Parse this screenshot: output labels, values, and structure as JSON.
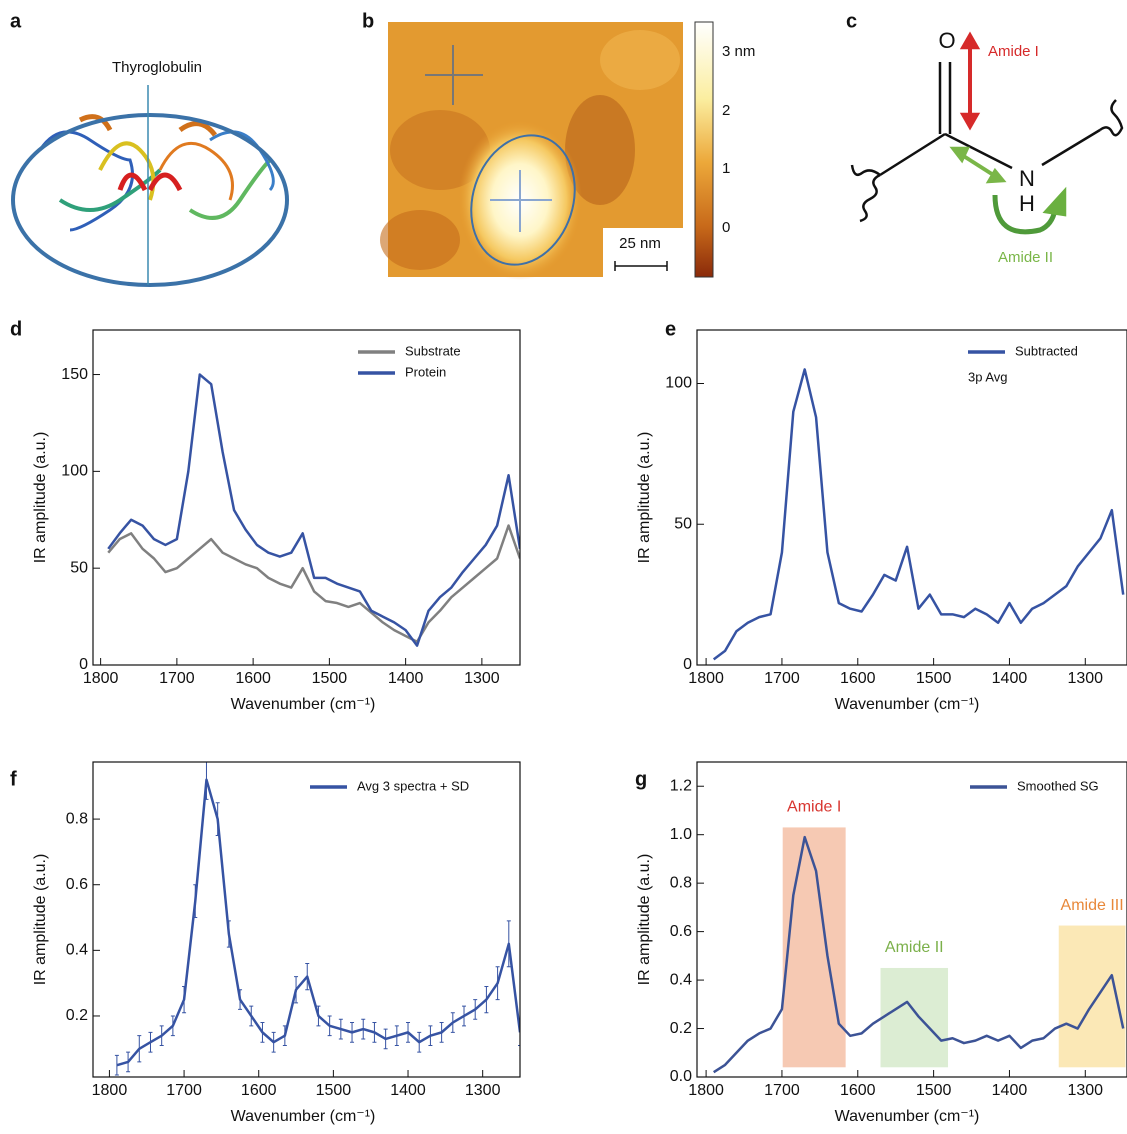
{
  "panel_labels": [
    "a",
    "b",
    "c"
  ],
  "figure_a": {
    "title": "Thyroglobulin"
  },
  "figure_b": {
    "scale_bar": "25 nm",
    "colorbar_ticks": [
      "3 nm",
      "2",
      "1",
      "0"
    ]
  },
  "figure_c": {
    "atoms": [
      "O",
      "N",
      "H"
    ],
    "labels": [
      "Amide I",
      "Amide II"
    ]
  },
  "chart_data": [
    {
      "type": "line",
      "panel_label": "d",
      "xlabel": "Wavenumber (cm⁻¹)",
      "ylabel": "IR amplitude (a.u.)",
      "x": [
        1790,
        1775,
        1760,
        1745,
        1730,
        1715,
        1700,
        1685,
        1670,
        1655,
        1640,
        1625,
        1610,
        1595,
        1580,
        1565,
        1550,
        1535,
        1520,
        1505,
        1490,
        1475,
        1460,
        1445,
        1430,
        1415,
        1400,
        1385,
        1370,
        1355,
        1340,
        1325,
        1310,
        1295,
        1280,
        1265,
        1250
      ],
      "series": [
        {
          "name": "Substrate",
          "color": "#808080",
          "values": [
            58,
            65,
            68,
            60,
            55,
            48,
            50,
            55,
            60,
            65,
            58,
            55,
            52,
            50,
            45,
            42,
            40,
            50,
            38,
            33,
            32,
            30,
            32,
            27,
            22,
            18,
            15,
            12,
            22,
            28,
            35,
            40,
            45,
            50,
            55,
            72,
            55
          ]
        },
        {
          "name": "Protein",
          "color": "#3653a3",
          "values": [
            60,
            68,
            75,
            72,
            65,
            62,
            65,
            100,
            150,
            145,
            110,
            80,
            70,
            62,
            58,
            56,
            58,
            68,
            45,
            45,
            42,
            40,
            38,
            28,
            25,
            22,
            18,
            10,
            28,
            35,
            40,
            48,
            55,
            62,
            72,
            98,
            60
          ]
        }
      ],
      "xlim": [
        1810,
        1250
      ],
      "ylim": [
        0,
        173
      ],
      "xticks": [
        1800,
        1700,
        1600,
        1500,
        1400,
        1300
      ],
      "yticks": [
        0,
        50,
        100,
        150
      ],
      "legend": "upper right"
    },
    {
      "type": "line",
      "panel_label": "e",
      "xlabel": "Wavenumber (cm⁻¹)",
      "ylabel": "IR amplitude (a.u.)",
      "annotation": "3p Avg",
      "x": [
        1790,
        1775,
        1760,
        1745,
        1730,
        1715,
        1700,
        1685,
        1670,
        1655,
        1640,
        1625,
        1610,
        1595,
        1580,
        1565,
        1550,
        1535,
        1520,
        1505,
        1490,
        1475,
        1460,
        1445,
        1430,
        1415,
        1400,
        1385,
        1370,
        1355,
        1340,
        1325,
        1310,
        1295,
        1280,
        1265,
        1250
      ],
      "series": [
        {
          "name": "Subtracted",
          "color": "#3653a3",
          "values": [
            2,
            5,
            12,
            15,
            17,
            18,
            40,
            90,
            105,
            88,
            40,
            22,
            20,
            19,
            25,
            32,
            30,
            42,
            20,
            25,
            18,
            18,
            17,
            20,
            18,
            15,
            22,
            15,
            20,
            22,
            25,
            28,
            35,
            40,
            45,
            55,
            25
          ]
        }
      ],
      "xlim": [
        1812,
        1245
      ],
      "ylim": [
        0,
        119
      ],
      "xticks": [
        1800,
        1700,
        1600,
        1500,
        1400,
        1300
      ],
      "yticks": [
        0,
        50,
        100
      ],
      "legend": "upper right"
    },
    {
      "type": "line",
      "panel_label": "f",
      "xlabel": "Wavenumber (cm⁻¹)",
      "ylabel": "IR amplitude (a.u.)",
      "x": [
        1790,
        1775,
        1760,
        1745,
        1730,
        1715,
        1700,
        1685,
        1670,
        1655,
        1640,
        1625,
        1610,
        1595,
        1580,
        1565,
        1550,
        1535,
        1520,
        1505,
        1490,
        1475,
        1460,
        1445,
        1430,
        1415,
        1400,
        1385,
        1370,
        1355,
        1340,
        1325,
        1310,
        1295,
        1280,
        1265,
        1250
      ],
      "series": [
        {
          "name": "Avg 3 spectra + SD",
          "color": "#3653a3",
          "values": [
            0.05,
            0.06,
            0.1,
            0.12,
            0.14,
            0.17,
            0.25,
            0.55,
            0.92,
            0.8,
            0.45,
            0.25,
            0.2,
            0.15,
            0.12,
            0.14,
            0.28,
            0.32,
            0.2,
            0.17,
            0.16,
            0.15,
            0.16,
            0.15,
            0.13,
            0.14,
            0.15,
            0.12,
            0.14,
            0.15,
            0.18,
            0.2,
            0.22,
            0.25,
            0.3,
            0.42,
            0.15
          ],
          "errors": [
            0.03,
            0.03,
            0.04,
            0.03,
            0.03,
            0.03,
            0.04,
            0.05,
            0.06,
            0.05,
            0.04,
            0.03,
            0.03,
            0.03,
            0.03,
            0.03,
            0.04,
            0.04,
            0.03,
            0.03,
            0.03,
            0.03,
            0.03,
            0.03,
            0.03,
            0.03,
            0.03,
            0.03,
            0.03,
            0.03,
            0.03,
            0.03,
            0.03,
            0.04,
            0.05,
            0.07,
            0.04
          ]
        }
      ],
      "xlim": [
        1822,
        1250
      ],
      "ylim": [
        0.014,
        0.974
      ],
      "xticks": [
        1800,
        1700,
        1600,
        1500,
        1400,
        1300
      ],
      "yticks": [
        0.2,
        0.4,
        0.6,
        0.8
      ],
      "legend": "upper right"
    },
    {
      "type": "line",
      "panel_label": "g",
      "xlabel": "Wavenumber (cm⁻¹)",
      "ylabel": "IR amplitude (a.u.)",
      "x": [
        1790,
        1775,
        1760,
        1745,
        1730,
        1715,
        1700,
        1685,
        1670,
        1655,
        1640,
        1625,
        1610,
        1595,
        1580,
        1565,
        1550,
        1535,
        1520,
        1505,
        1490,
        1475,
        1460,
        1445,
        1430,
        1415,
        1400,
        1385,
        1370,
        1355,
        1340,
        1325,
        1310,
        1295,
        1280,
        1265,
        1250
      ],
      "series": [
        {
          "name": "Smoothed SG",
          "color": "#3c5396",
          "values": [
            0.02,
            0.05,
            0.1,
            0.15,
            0.18,
            0.2,
            0.28,
            0.75,
            0.99,
            0.85,
            0.5,
            0.22,
            0.17,
            0.18,
            0.22,
            0.25,
            0.28,
            0.31,
            0.25,
            0.2,
            0.15,
            0.16,
            0.14,
            0.15,
            0.17,
            0.15,
            0.17,
            0.12,
            0.15,
            0.16,
            0.2,
            0.22,
            0.2,
            0.28,
            0.35,
            0.42,
            0.2
          ]
        }
      ],
      "regions": [
        {
          "text": "Amide I",
          "x": [
            1699,
            1616
          ],
          "y": [
            0.04,
            1.03
          ],
          "color": "#f6c9b3",
          "text_color": "#d8352f"
        },
        {
          "text": "Amide II",
          "x": [
            1570,
            1481
          ],
          "y": [
            0.04,
            0.45
          ],
          "color": "#dcedd3",
          "text_color": "#7bb04a"
        },
        {
          "text": "Amide III",
          "x": [
            1335,
            1247
          ],
          "y": [
            0.04,
            0.625
          ],
          "color": "#fbe8b6",
          "text_color": "#e8883a"
        }
      ],
      "xlim": [
        1812,
        1245
      ],
      "ylim": [
        0,
        1.3
      ],
      "xticks": [
        1800,
        1700,
        1600,
        1500,
        1400,
        1300
      ],
      "yticks": [
        {
          "value": 0,
          "label": "0.0"
        },
        0.2,
        0.4,
        0.6,
        0.8,
        {
          "value": 1,
          "label": "1.0"
        },
        1.2
      ],
      "legend": "upper right"
    }
  ]
}
